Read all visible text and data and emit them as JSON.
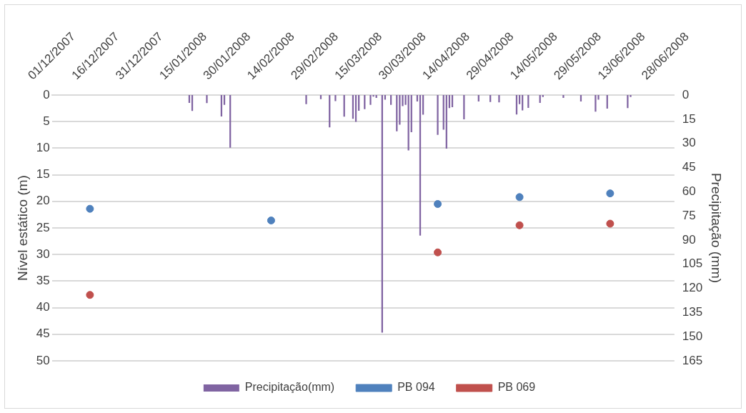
{
  "chart_data": {
    "type": "scatter",
    "ylabel": "Nível estático (m)",
    "y2label": "Precipitação (mm)",
    "xlim": [
      "2007-12-01",
      "2008-07-01"
    ],
    "xticks": [
      {
        "value": "2007-12-01",
        "label": "01/12/2007"
      },
      {
        "value": "2007-12-16",
        "label": "16/12/2007"
      },
      {
        "value": "2007-12-31",
        "label": "31/12/2007"
      },
      {
        "value": "2008-01-15",
        "label": "15/01/2008"
      },
      {
        "value": "2008-01-30",
        "label": "30/01/2008"
      },
      {
        "value": "2008-02-14",
        "label": "14/02/2008"
      },
      {
        "value": "2008-02-29",
        "label": "29/02/2008"
      },
      {
        "value": "2008-03-15",
        "label": "15/03/2008"
      },
      {
        "value": "2008-03-30",
        "label": "30/03/2008"
      },
      {
        "value": "2008-04-14",
        "label": "14/04/2008"
      },
      {
        "value": "2008-04-29",
        "label": "29/04/2008"
      },
      {
        "value": "2008-05-14",
        "label": "14/05/2008"
      },
      {
        "value": "2008-05-29",
        "label": "29/05/2008"
      },
      {
        "value": "2008-06-13",
        "label": "13/06/2008"
      },
      {
        "value": "2008-06-28",
        "label": "28/06/2008"
      }
    ],
    "ylim": [
      50,
      0
    ],
    "yticks": [
      0,
      5,
      10,
      15,
      20,
      25,
      30,
      35,
      40,
      45,
      50
    ],
    "y2lim": [
      165,
      0
    ],
    "y2ticks": [
      0,
      15,
      30,
      45,
      60,
      75,
      90,
      105,
      120,
      135,
      150,
      165
    ],
    "grid": "y",
    "legend": "bottom",
    "marker": "circle",
    "series": [
      {
        "name": "Precipitação(mm)",
        "type": "bar",
        "axis": "y2",
        "color": "#8064a2",
        "x": [
          "2008-01-17",
          "2008-01-18",
          "2008-01-23",
          "2008-01-28",
          "2008-01-29",
          "2008-01-31",
          "2008-02-26",
          "2008-03-02",
          "2008-03-05",
          "2008-03-07",
          "2008-03-10",
          "2008-03-13",
          "2008-03-14",
          "2008-03-15",
          "2008-03-17",
          "2008-03-19",
          "2008-03-20",
          "2008-03-21",
          "2008-03-23",
          "2008-03-24",
          "2008-03-26",
          "2008-03-28",
          "2008-03-29",
          "2008-03-30",
          "2008-03-31",
          "2008-04-01",
          "2008-04-02",
          "2008-04-04",
          "2008-04-05",
          "2008-04-06",
          "2008-04-11",
          "2008-04-13",
          "2008-04-14",
          "2008-04-15",
          "2008-04-16",
          "2008-04-20",
          "2008-04-25",
          "2008-04-29",
          "2008-05-02",
          "2008-05-08",
          "2008-05-09",
          "2008-05-10",
          "2008-05-12",
          "2008-05-16",
          "2008-05-17",
          "2008-05-24",
          "2008-05-30",
          "2008-06-04",
          "2008-06-05",
          "2008-06-08",
          "2008-06-15",
          "2008-06-16"
        ],
        "values": [
          4.7,
          9.7,
          4.8,
          13.2,
          6.0,
          32.6,
          5.5,
          2.4,
          19.9,
          3.6,
          13.3,
          14.6,
          16.5,
          9.6,
          8.6,
          6.0,
          0.8,
          1.6,
          147.3,
          2.7,
          6.0,
          22.4,
          18.3,
          6.7,
          6.0,
          34.2,
          22.9,
          3.9,
          87.1,
          12.1,
          24.6,
          21.4,
          33.1,
          8.0,
          7.4,
          14.9,
          3.9,
          4.2,
          4.4,
          11.9,
          5.5,
          9.4,
          7.8,
          4.7,
          1.1,
          1.6,
          3.9,
          10.2,
          2.7,
          8.3,
          8.0,
          1.1
        ]
      },
      {
        "name": "PB 094",
        "color": "#4f81bd",
        "x": [
          "2007-12-14",
          "2008-02-14",
          "2008-04-11",
          "2008-05-09",
          "2008-06-09"
        ],
        "values": [
          21.4,
          23.6,
          20.5,
          19.2,
          18.5
        ]
      },
      {
        "name": "PB 069",
        "color": "#c0504d",
        "x": [
          "2007-12-14",
          "2008-02-14",
          "2008-04-11",
          "2008-05-09",
          "2008-06-09"
        ],
        "values": [
          37.6,
          null,
          29.6,
          24.5,
          24.2
        ]
      }
    ]
  }
}
